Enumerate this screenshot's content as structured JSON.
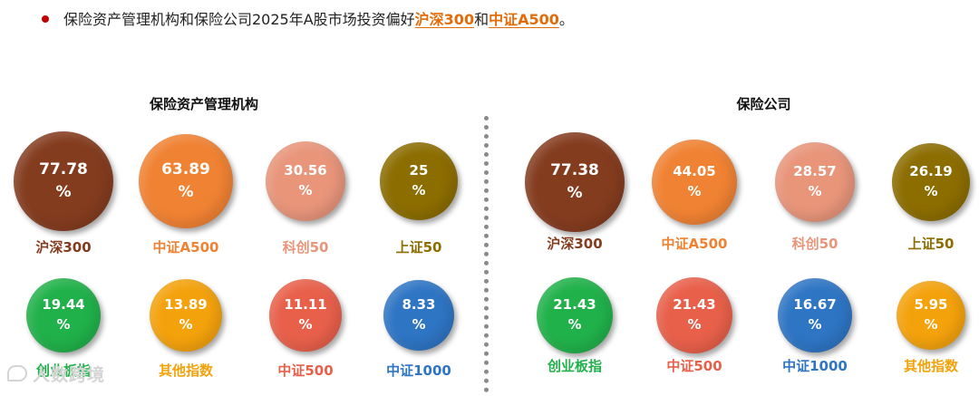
{
  "headline": {
    "prefix": "保险资产管理机构和保险公司2025年A股市场投资偏好",
    "hl1": "沪深300",
    "mid": "和",
    "hl2": "中证A500",
    "suffix": "。",
    "colors": {
      "bullet": "#c00000",
      "highlight": "#e36c09"
    }
  },
  "watermark": {
    "text": "人数跨境",
    "icon": "chat-bubble-icon"
  },
  "chart_data": [
    {
      "type": "bubble",
      "title": "保险资产管理机构",
      "unit": "%",
      "items": [
        {
          "label": "沪深300",
          "value": 77.78,
          "display": "77.78",
          "color": "#843c1f"
        },
        {
          "label": "中证A500",
          "value": 63.89,
          "display": "63.89",
          "color": "#f08233"
        },
        {
          "label": "科创50",
          "value": 30.56,
          "display": "30.56",
          "color": "#e8957a"
        },
        {
          "label": "上证50",
          "value": 25,
          "display": "25",
          "color": "#8c6d00"
        },
        {
          "label": "创业板指",
          "value": 19.44,
          "display": "19.44",
          "color": "#21b14a"
        },
        {
          "label": "其他指数",
          "value": 13.89,
          "display": "13.89",
          "color": "#f4a20c"
        },
        {
          "label": "中证500",
          "value": 11.11,
          "display": "11.11",
          "color": "#e8604a"
        },
        {
          "label": "中证1000",
          "value": 8.33,
          "display": "8.33",
          "color": "#2e75c4"
        }
      ]
    },
    {
      "type": "bubble",
      "title": "保险公司",
      "unit": "%",
      "items": [
        {
          "label": "沪深300",
          "value": 77.38,
          "display": "77.38",
          "color": "#843c1f"
        },
        {
          "label": "中证A500",
          "value": 44.05,
          "display": "44.05",
          "color": "#f08233"
        },
        {
          "label": "科创50",
          "value": 28.57,
          "display": "28.57",
          "color": "#e8957a"
        },
        {
          "label": "上证50",
          "value": 26.19,
          "display": "26.19",
          "color": "#8c6d00"
        },
        {
          "label": "创业板指",
          "value": 21.43,
          "display": "21.43",
          "color": "#21b14a"
        },
        {
          "label": "中证500",
          "value": 21.43,
          "display": "21.43",
          "color": "#e8604a"
        },
        {
          "label": "中证1000",
          "value": 16.67,
          "display": "16.67",
          "color": "#2e75c4"
        },
        {
          "label": "其他指数",
          "value": 5.95,
          "display": "5.95",
          "color": "#f4a20c"
        }
      ]
    }
  ]
}
